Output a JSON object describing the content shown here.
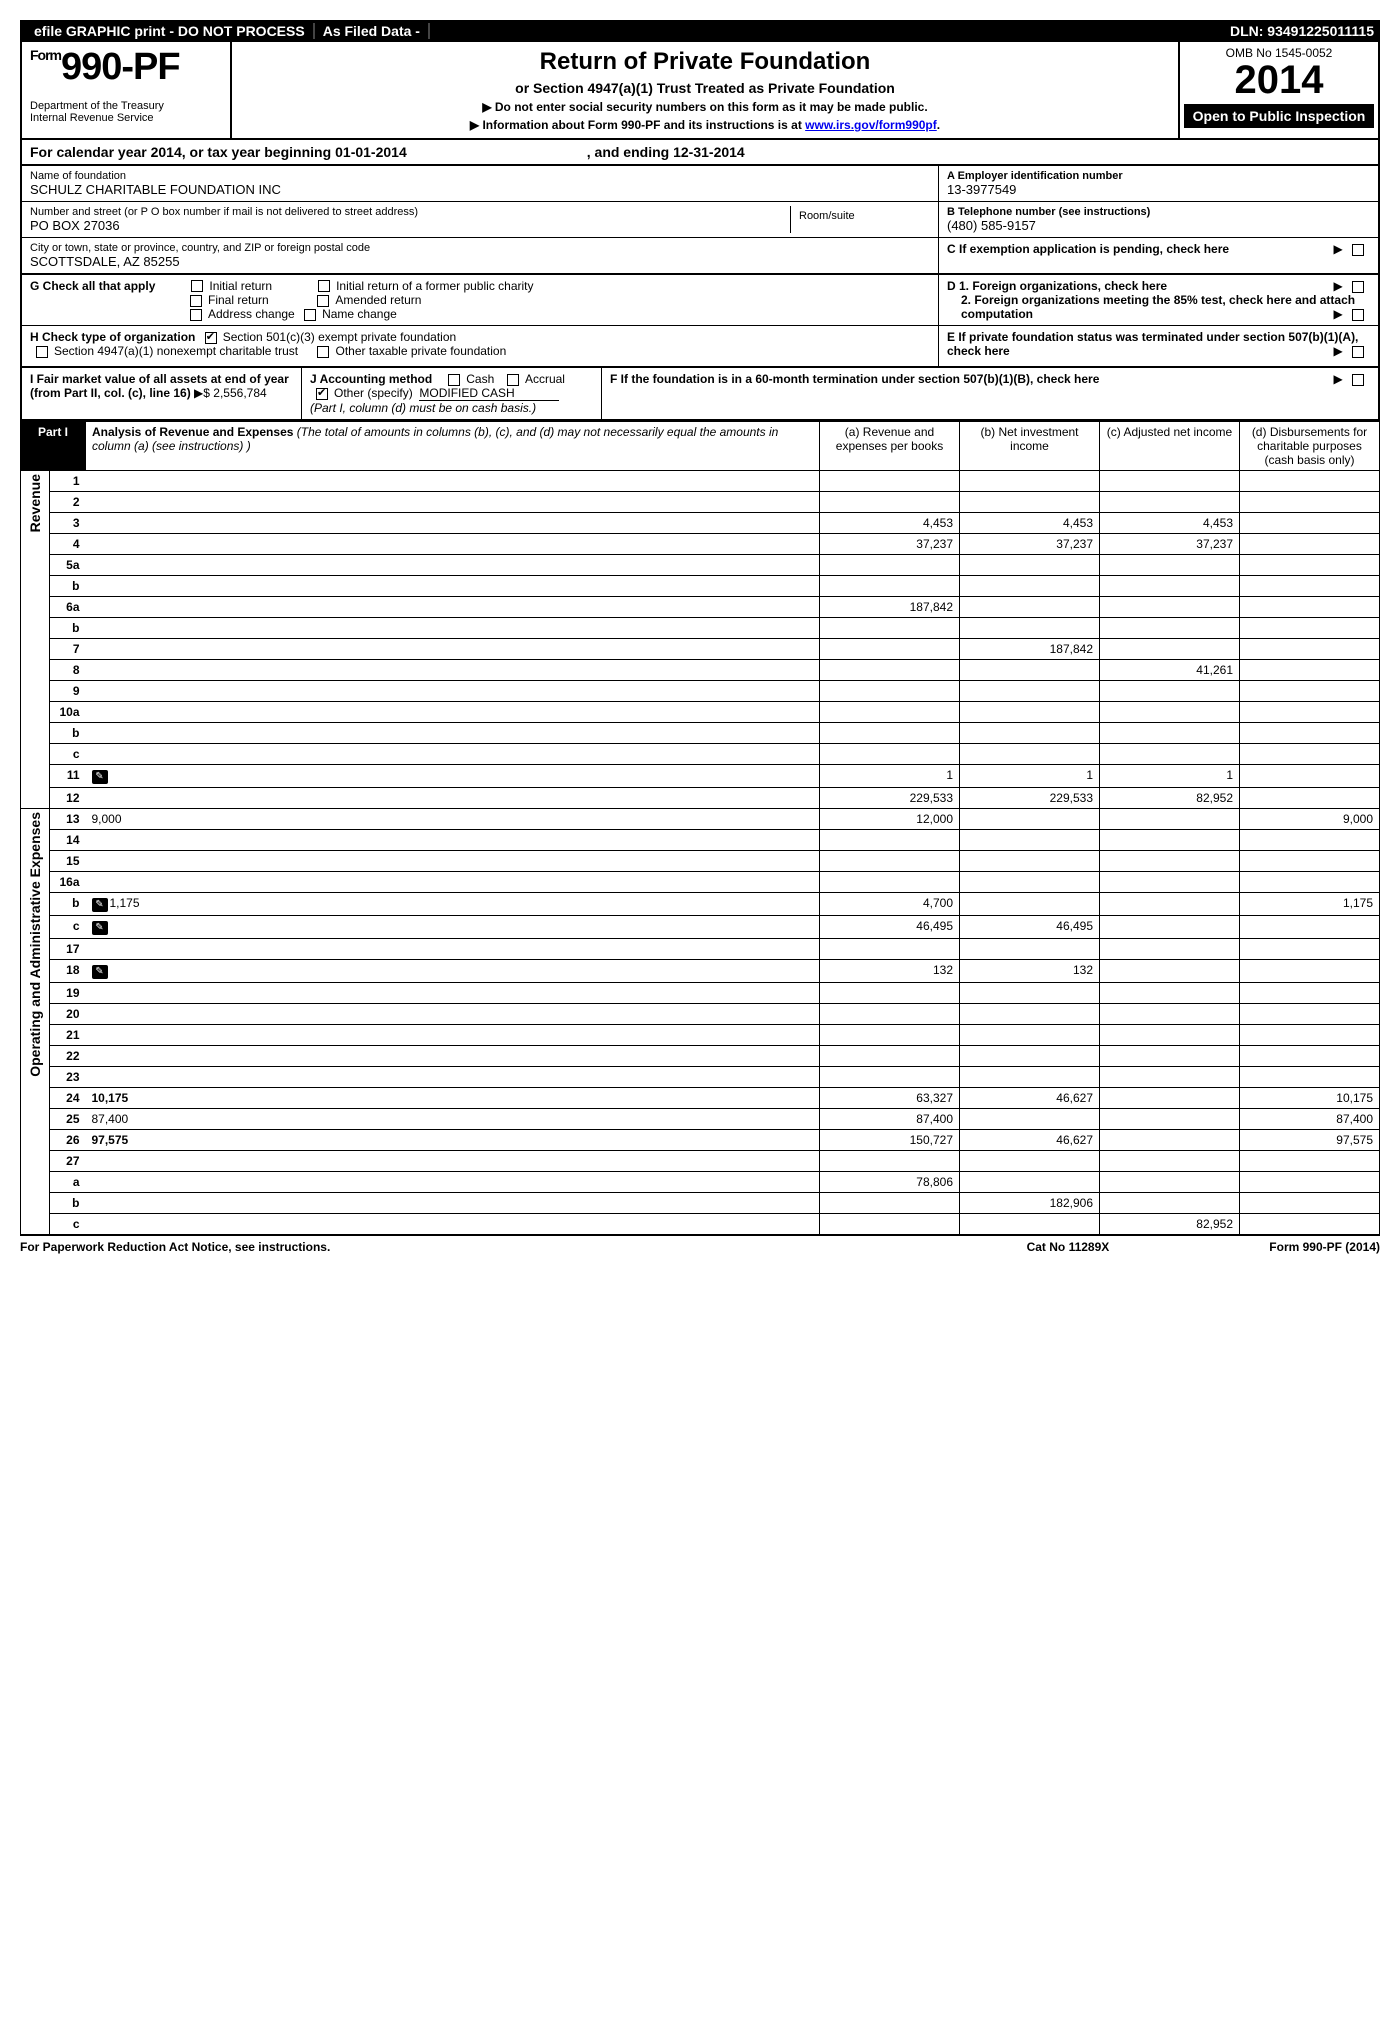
{
  "top": {
    "efile": "efile GRAPHIC print - DO NOT PROCESS",
    "asfiled": "As Filed Data -",
    "dln_label": "DLN:",
    "dln": "93491225011115"
  },
  "header": {
    "form_prefix": "Form",
    "form_no": "990-PF",
    "dept1": "Department of the Treasury",
    "dept2": "Internal Revenue Service",
    "title": "Return of Private Foundation",
    "subtitle": "or Section 4947(a)(1) Trust Treated as Private Foundation",
    "note1": "▶ Do not enter social security numbers on this form as it may be made public.",
    "note2_pre": "▶ Information about Form 990-PF and its instructions is at ",
    "note2_link": "www.irs.gov/form990pf",
    "note2_post": ".",
    "omb": "OMB No 1545-0052",
    "year": "2014",
    "open": "Open to Public Inspection"
  },
  "calyear": {
    "prefix": "For calendar year 2014, or tax year beginning",
    "start": "01-01-2014",
    "mid": ", and ending",
    "end": "12-31-2014"
  },
  "info": {
    "name_label": "Name of foundation",
    "name": "SCHULZ CHARITABLE FOUNDATION INC",
    "addr_label": "Number and street (or P O  box number if mail is not delivered to street address)",
    "addr": "PO BOX 27036",
    "room_label": "Room/suite",
    "city_label": "City or town, state or province, country, and ZIP or foreign postal code",
    "city": "SCOTTSDALE, AZ  85255",
    "a_label": "A Employer identification number",
    "a_val": "13-3977549",
    "b_label": "B Telephone number (see instructions)",
    "b_val": "(480) 585-9157",
    "c_label": "C If exemption application is pending, check here"
  },
  "g": {
    "label": "G Check all that apply",
    "initial": "Initial return",
    "initial_former": "Initial return of a former public charity",
    "final": "Final return",
    "amended": "Amended return",
    "address": "Address change",
    "namechg": "Name change",
    "h_label": "H Check type of organization",
    "h_501": "Section 501(c)(3) exempt private foundation",
    "h_4947": "Section 4947(a)(1) nonexempt charitable trust",
    "h_other": "Other taxable private foundation",
    "d1": "D 1. Foreign organizations, check here",
    "d2": "2. Foreign organizations meeting the 85% test, check here and attach computation",
    "e": "E If private foundation status was terminated under section 507(b)(1)(A), check here"
  },
  "ij": {
    "i_label": "I Fair market value of all assets at end of year (from Part II, col. (c), line 16)",
    "i_val": "▶$  2,556,784",
    "j_label": "J Accounting method",
    "j_cash": "Cash",
    "j_accrual": "Accrual",
    "j_other": "Other (specify)",
    "j_other_val": "MODIFIED CASH",
    "j_note": "(Part I, column (d) must be on cash basis.)",
    "f": "F If the foundation is in a 60-month termination under section 507(b)(1)(B), check here"
  },
  "part1": {
    "label": "Part I",
    "title": "Analysis of Revenue and Expenses",
    "note": "(The total of amounts in columns (b), (c), and (d) may not necessarily equal the amounts in column (a) (see instructions) )",
    "col_a": "(a) Revenue and expenses per books",
    "col_b": "(b) Net investment income",
    "col_c": "(c) Adjusted net income",
    "col_d": "(d) Disbursements for charitable purposes (cash basis only)"
  },
  "sections": {
    "revenue": "Revenue",
    "expenses": "Operating and Administrative Expenses"
  },
  "rows": [
    {
      "n": "1",
      "d": "",
      "a": "",
      "b": "",
      "c": ""
    },
    {
      "n": "2",
      "d": "",
      "a": "",
      "b": "",
      "c": ""
    },
    {
      "n": "3",
      "d": "",
      "a": "4,453",
      "b": "4,453",
      "c": "4,453"
    },
    {
      "n": "4",
      "d": "",
      "a": "37,237",
      "b": "37,237",
      "c": "37,237"
    },
    {
      "n": "5a",
      "d": "",
      "a": "",
      "b": "",
      "c": ""
    },
    {
      "n": "b",
      "d": "",
      "a": "",
      "b": "",
      "c": ""
    },
    {
      "n": "6a",
      "d": "",
      "a": "187,842",
      "b": "",
      "c": ""
    },
    {
      "n": "b",
      "d": "",
      "a": "",
      "b": "",
      "c": ""
    },
    {
      "n": "7",
      "d": "",
      "a": "",
      "b": "187,842",
      "c": ""
    },
    {
      "n": "8",
      "d": "",
      "a": "",
      "b": "",
      "c": "41,261"
    },
    {
      "n": "9",
      "d": "",
      "a": "",
      "b": "",
      "c": ""
    },
    {
      "n": "10a",
      "d": "",
      "a": "",
      "b": "",
      "c": ""
    },
    {
      "n": "b",
      "d": "",
      "a": "",
      "b": "",
      "c": ""
    },
    {
      "n": "c",
      "d": "",
      "a": "",
      "b": "",
      "c": ""
    },
    {
      "n": "11",
      "d": "",
      "icon": true,
      "a": "1",
      "b": "1",
      "c": "1"
    },
    {
      "n": "12",
      "d": "",
      "bold": true,
      "a": "229,533",
      "b": "229,533",
      "c": "82,952"
    },
    {
      "n": "13",
      "d": "9,000",
      "a": "12,000",
      "b": "",
      "c": ""
    },
    {
      "n": "14",
      "d": "",
      "a": "",
      "b": "",
      "c": ""
    },
    {
      "n": "15",
      "d": "",
      "a": "",
      "b": "",
      "c": ""
    },
    {
      "n": "16a",
      "d": "",
      "a": "",
      "b": "",
      "c": ""
    },
    {
      "n": "b",
      "d": "1,175",
      "icon": true,
      "a": "4,700",
      "b": "",
      "c": ""
    },
    {
      "n": "c",
      "d": "",
      "icon": true,
      "a": "46,495",
      "b": "46,495",
      "c": ""
    },
    {
      "n": "17",
      "d": "",
      "a": "",
      "b": "",
      "c": ""
    },
    {
      "n": "18",
      "d": "",
      "icon": true,
      "a": "132",
      "b": "132",
      "c": ""
    },
    {
      "n": "19",
      "d": "",
      "a": "",
      "b": "",
      "c": ""
    },
    {
      "n": "20",
      "d": "",
      "a": "",
      "b": "",
      "c": ""
    },
    {
      "n": "21",
      "d": "",
      "a": "",
      "b": "",
      "c": ""
    },
    {
      "n": "22",
      "d": "",
      "a": "",
      "b": "",
      "c": ""
    },
    {
      "n": "23",
      "d": "",
      "a": "",
      "b": "",
      "c": ""
    },
    {
      "n": "24",
      "d": "10,175",
      "bold": true,
      "a": "63,327",
      "b": "46,627",
      "c": ""
    },
    {
      "n": "25",
      "d": "87,400",
      "a": "87,400",
      "b": "",
      "c": ""
    },
    {
      "n": "26",
      "d": "97,575",
      "bold": true,
      "a": "150,727",
      "b": "46,627",
      "c": ""
    },
    {
      "n": "27",
      "d": "",
      "a": "",
      "b": "",
      "c": ""
    },
    {
      "n": "a",
      "d": "",
      "bold": true,
      "a": "78,806",
      "b": "",
      "c": ""
    },
    {
      "n": "b",
      "d": "",
      "bold": true,
      "a": "",
      "b": "182,906",
      "c": ""
    },
    {
      "n": "c",
      "d": "",
      "bold": true,
      "a": "",
      "b": "",
      "c": "82,952"
    }
  ],
  "footer": {
    "left": "For Paperwork Reduction Act Notice, see instructions.",
    "mid": "Cat No 11289X",
    "right": "Form 990-PF (2014)"
  }
}
